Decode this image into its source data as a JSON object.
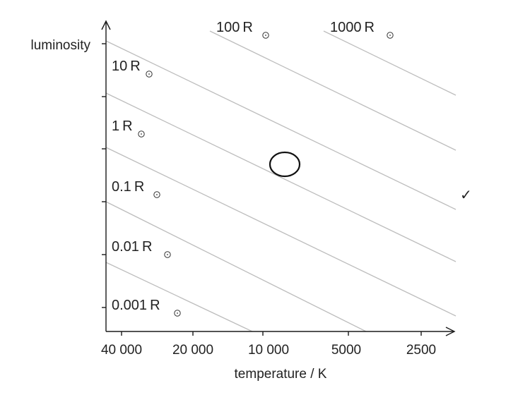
{
  "diagram": {
    "type": "hertzsprung-russell-radius-lines",
    "y_axis_label": "luminosity",
    "x_axis_label": "temperature / K",
    "x_tick_labels": [
      "40 000",
      "20 000",
      "10 000",
      "5000",
      "2500"
    ],
    "radius_lines": [
      {
        "value": "0.001",
        "unit": "R"
      },
      {
        "value": "0.01",
        "unit": "R"
      },
      {
        "value": "0.1",
        "unit": "R"
      },
      {
        "value": "1",
        "unit": "R"
      },
      {
        "value": "10",
        "unit": "R"
      },
      {
        "value": "100",
        "unit": "R"
      },
      {
        "value": "1000",
        "unit": "R"
      }
    ],
    "check_mark": "✓",
    "colors": {
      "axis": "#1a1a1a",
      "radius_line": "#bdbdbd",
      "text": "#222222"
    }
  }
}
